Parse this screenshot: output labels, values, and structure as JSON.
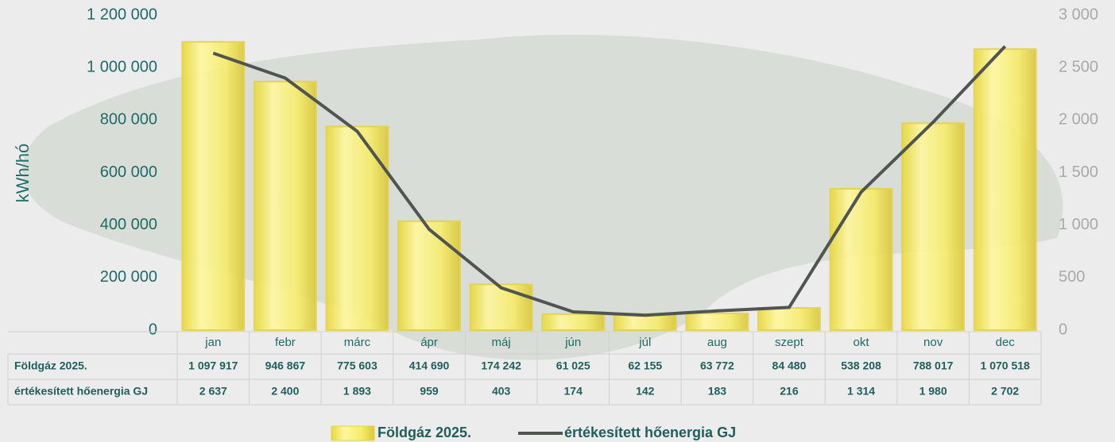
{
  "chart_data": {
    "type": "bar",
    "y_label": "kWh/hó",
    "categories": [
      "jan",
      "febr",
      "márc",
      "ápr",
      "máj",
      "jún",
      "júl",
      "aug",
      "szept",
      "okt",
      "nov",
      "dec"
    ],
    "series": [
      {
        "name": "Földgáz 2025.",
        "color": "#f5e85a",
        "values": [
          1097917,
          946867,
          775603,
          414690,
          174242,
          61025,
          62155,
          63772,
          84480,
          538208,
          788017,
          1070518
        ],
        "value_labels": [
          "1 097 917",
          "946 867",
          "775 603",
          "414 690",
          "174 242",
          "61 025",
          "62 155",
          "63 772",
          "84 480",
          "538 208",
          "788 017",
          "1 070 518"
        ]
      },
      {
        "name": "értékesített hőenergia GJ",
        "color": "#505552",
        "axis": "y2",
        "values": [
          2637,
          2400,
          1893,
          959,
          403,
          174,
          142,
          183,
          216,
          1314,
          1980,
          2702
        ],
        "value_labels": [
          "2 637",
          "2 400",
          "1 893",
          "959",
          "403",
          "174",
          "142",
          "183",
          "216",
          "1 314",
          "1 980",
          "2 702"
        ]
      }
    ],
    "ylim": [
      0,
      1200000
    ],
    "yticks": [
      0,
      {
        "value": 200000,
        "label": "200 000"
      },
      {
        "value": 400000,
        "label": "400 000"
      },
      {
        "value": 600000,
        "label": "600 000"
      },
      {
        "value": 800000,
        "label": "800 000"
      },
      {
        "value": 1000000,
        "label": "1 000 000"
      },
      {
        "value": 1200000,
        "label": "1 200 000"
      }
    ],
    "y2lim": [
      0,
      3000
    ],
    "y2ticks": [
      0,
      500,
      {
        "value": 1000,
        "label": "1 000"
      },
      {
        "value": 1500,
        "label": "1 500"
      },
      {
        "value": 2000,
        "label": "2 000"
      },
      {
        "value": 2500,
        "label": "2 500"
      },
      {
        "value": 3000,
        "label": "3 000"
      }
    ],
    "legend": "bottom"
  }
}
